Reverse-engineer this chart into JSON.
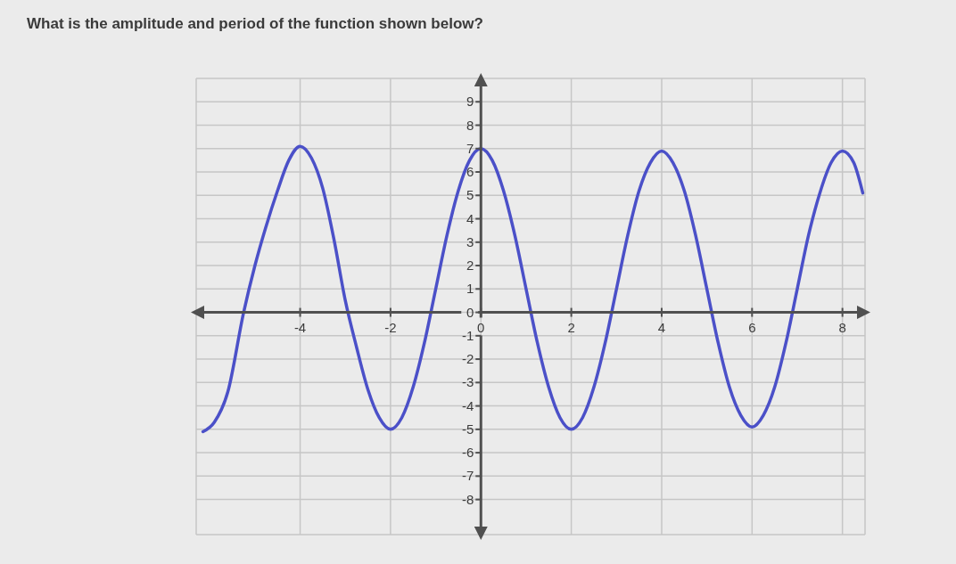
{
  "chart_data": {
    "type": "line",
    "title": "What is the amplitude and period of the function shown below?",
    "x": [
      -6.15,
      -5.9,
      -5.6,
      -5.25,
      -5.0,
      -4.75,
      -4.5,
      -4.25,
      -4.0,
      -3.75,
      -3.5,
      -3.25,
      -3.0,
      -2.75,
      -2.5,
      -2.25,
      -2.0,
      -1.75,
      -1.5,
      -1.25,
      -1.0,
      -0.75,
      -0.5,
      -0.25,
      0,
      0.25,
      0.5,
      0.75,
      1.0,
      1.25,
      1.5,
      1.75,
      2.0,
      2.25,
      2.5,
      2.75,
      3.0,
      3.25,
      3.5,
      3.75,
      4.0,
      4.25,
      4.5,
      4.75,
      5.0,
      5.25,
      5.5,
      5.75,
      6.0,
      6.25,
      6.5,
      6.75,
      7.0,
      7.25,
      7.5,
      7.75,
      8.0,
      8.25,
      8.45
    ],
    "series": [
      {
        "color": "#4b50c8",
        "values": [
          -5.1,
          -4.7,
          -3.4,
          0,
          2.0,
          3.7,
          5.2,
          6.5,
          7.1,
          6.6,
          5.3,
          3.1,
          0.5,
          -1.5,
          -3.3,
          -4.5,
          -5.0,
          -4.5,
          -3.2,
          -1.3,
          1.0,
          3.3,
          5.2,
          6.5,
          7.0,
          6.5,
          5.2,
          3.3,
          1.0,
          -1.3,
          -3.2,
          -4.5,
          -5.0,
          -4.5,
          -3.2,
          -1.3,
          1.0,
          3.3,
          5.2,
          6.4,
          6.9,
          6.4,
          5.2,
          3.3,
          1.0,
          -1.3,
          -3.2,
          -4.4,
          -4.9,
          -4.4,
          -3.2,
          -1.3,
          1.0,
          3.3,
          5.1,
          6.4,
          6.9,
          6.4,
          5.1
        ]
      }
    ],
    "xlim": [
      -6.3,
      8.5
    ],
    "ylim": [
      -9.5,
      10
    ],
    "xticks": [
      -4,
      -2,
      0,
      2,
      4,
      6,
      8
    ],
    "yticks": [
      -8,
      -7,
      -6,
      -5,
      -4,
      -3,
      -2,
      -1,
      0,
      1,
      2,
      3,
      4,
      5,
      6,
      7,
      8,
      9
    ],
    "grid": true,
    "line_style": "solid"
  }
}
